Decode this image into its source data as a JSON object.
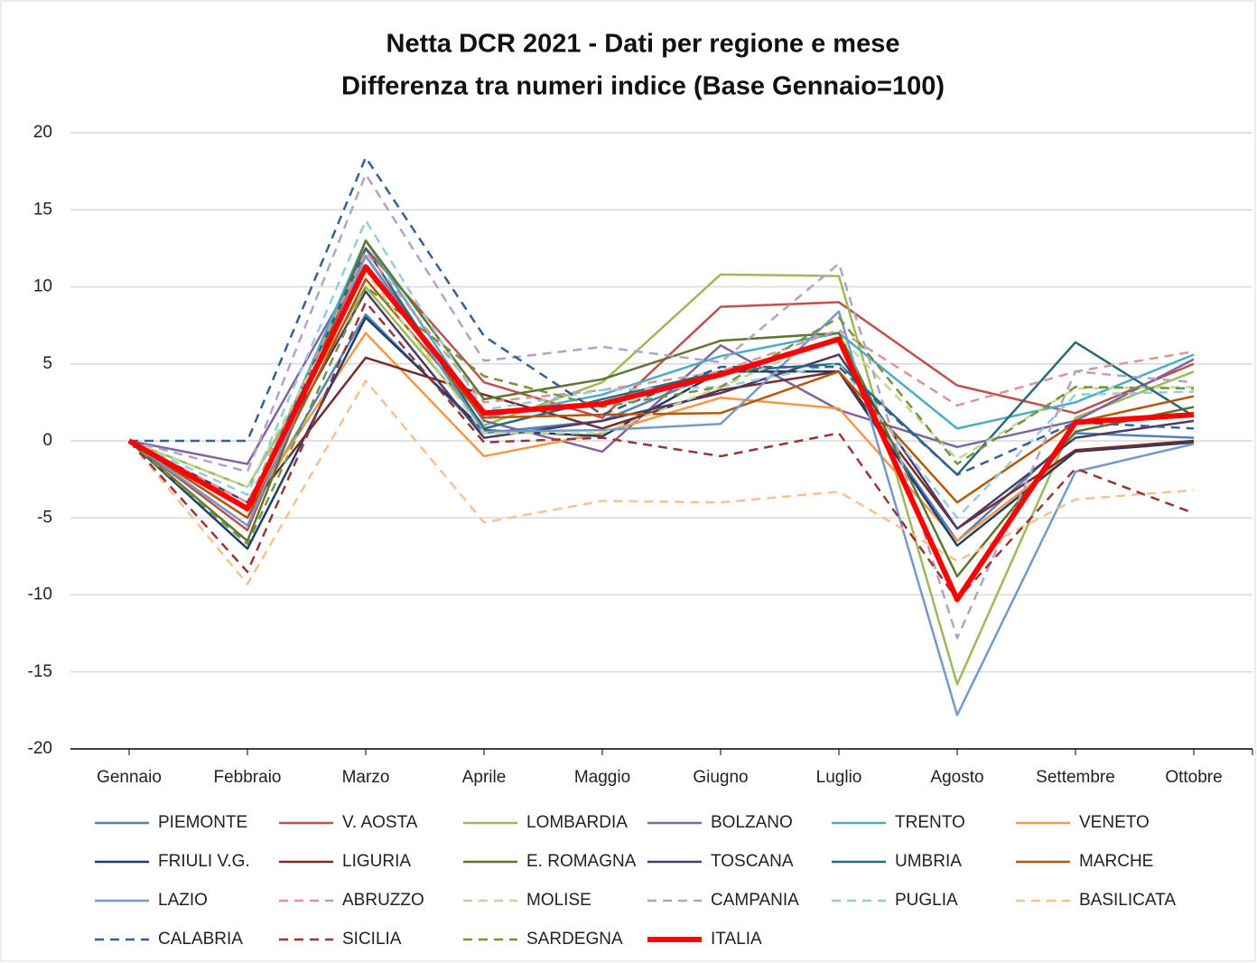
{
  "chart_data": {
    "type": "line",
    "title": "Netta DCR 2021 - Dati per regione e mese",
    "subtitle": "Differenza tra numeri indice (Base Gennaio=100)",
    "categories": [
      "Gennaio",
      "Febbraio",
      "Marzo",
      "Aprile",
      "Maggio",
      "Giugno",
      "Luglio",
      "Agosto",
      "Settembre",
      "Ottobre"
    ],
    "ylim": [
      -20,
      20
    ],
    "yticks": [
      -20,
      -15,
      -10,
      -5,
      0,
      5,
      10,
      15,
      20
    ],
    "grid": true,
    "legend": "bottom",
    "series": [
      {
        "name": "PIEMONTE",
        "color": "#4f81bd",
        "values": [
          0,
          -5,
          8.2,
          0.5,
          1.3,
          4.5,
          4.5,
          -6.5,
          0.5,
          0.2
        ]
      },
      {
        "name": "V. AOSTA",
        "color": "#c0504d",
        "values": [
          0,
          -5.8,
          12.5,
          3.8,
          1.5,
          8.7,
          9,
          3.6,
          1.8,
          5
        ]
      },
      {
        "name": "LOMBARDIA",
        "color": "#9bbb59",
        "values": [
          0,
          -3,
          10,
          1,
          3.8,
          10.8,
          10.7,
          -15.8,
          1.5,
          4.5
        ]
      },
      {
        "name": "BOLZANO",
        "color": "#8064a2",
        "values": [
          0,
          -1.5,
          12,
          1.3,
          -0.7,
          6.2,
          2,
          -0.4,
          1.3,
          5.3
        ]
      },
      {
        "name": "TRENTO",
        "color": "#4bacc6",
        "values": [
          0,
          -4.5,
          13,
          1.5,
          3,
          5.5,
          7,
          0.8,
          2.5,
          5.6
        ]
      },
      {
        "name": "VENETO",
        "color": "#f79646",
        "values": [
          0,
          -4.5,
          7,
          -1,
          0.5,
          2.8,
          2.1,
          -6.5,
          -0.6,
          0
        ]
      },
      {
        "name": "FRIULI V.G.",
        "color": "#1f3d6b",
        "values": [
          0,
          -7,
          8,
          0.7,
          0.3,
          4.5,
          4.5,
          -6.8,
          -0.7,
          -0.1
        ]
      },
      {
        "name": "LIGURIA",
        "color": "#772c2a",
        "values": [
          0,
          -4.5,
          5.4,
          3,
          0.8,
          3.3,
          4.5,
          -5.7,
          -0.6,
          0
        ]
      },
      {
        "name": "E. ROMAGNA",
        "color": "#5f7530",
        "values": [
          0,
          -6.5,
          13,
          2.7,
          4,
          6.5,
          7,
          -8.8,
          0.6,
          2.2
        ]
      },
      {
        "name": "TOSCANA",
        "color": "#4d3b62",
        "values": [
          0,
          -4,
          9.7,
          0.2,
          1.3,
          3.1,
          5.6,
          -5.7,
          0.2,
          1.3
        ]
      },
      {
        "name": "UMBRIA",
        "color": "#276a7c",
        "values": [
          0,
          -4.5,
          12.5,
          0.8,
          2.7,
          4.5,
          5,
          -2.2,
          6.4,
          1.6
        ]
      },
      {
        "name": "MARCHE",
        "color": "#b65708",
        "values": [
          0,
          -5,
          10.5,
          1.5,
          1.7,
          1.8,
          4.5,
          -4,
          1.2,
          2.9
        ]
      },
      {
        "name": "LAZIO",
        "color": "#729aca",
        "values": [
          0,
          -5.5,
          12,
          0.6,
          0.7,
          1.1,
          8.4,
          -17.8,
          -2,
          -0.2
        ]
      },
      {
        "name": "ABRUZZO",
        "color": "#d99694",
        "dashed": true,
        "values": [
          0,
          -4,
          12.3,
          2.5,
          3.3,
          4.5,
          7.2,
          2.3,
          4.5,
          5.8
        ]
      },
      {
        "name": "MOLISE",
        "color": "#c3d69b",
        "dashed": true,
        "values": [
          0,
          -3,
          11,
          0.5,
          0.5,
          3.5,
          6.8,
          -1.2,
          3.4,
          3.5
        ]
      },
      {
        "name": "CAMPANIA",
        "color": "#b3a2c7",
        "dashed": true,
        "values": [
          0,
          -2,
          17.3,
          5.2,
          6.1,
          5.1,
          11.5,
          -12.8,
          4.5,
          3.8
        ]
      },
      {
        "name": "PUGLIA",
        "color": "#93cddd",
        "dashed": true,
        "values": [
          0,
          -3.5,
          14.3,
          2,
          3.3,
          3.5,
          5,
          -5,
          3,
          3.2
        ]
      },
      {
        "name": "BASILICATA",
        "color": "#fac090",
        "dashed": true,
        "values": [
          0,
          -9.3,
          3.9,
          -5.3,
          -3.9,
          -4,
          -3.3,
          -7.8,
          -3.8,
          -3.2
        ]
      },
      {
        "name": "CALABRIA",
        "color": "#376092",
        "dashed": true,
        "values": [
          0,
          0,
          18.4,
          6.8,
          1.7,
          4.8,
          4.8,
          -2.2,
          1.2,
          0.8
        ]
      },
      {
        "name": "SICILIA",
        "color": "#953735",
        "dashed": true,
        "values": [
          0,
          -8.5,
          9,
          -0.1,
          0.2,
          -1,
          0.5,
          -10.3,
          -1.8,
          -4.7
        ]
      },
      {
        "name": "SARDEGNA",
        "color": "#77933c",
        "dashed": true,
        "values": [
          0,
          -6.7,
          10,
          4.2,
          2.2,
          3.5,
          8,
          -1.5,
          3.5,
          3.4
        ]
      },
      {
        "name": "ITALIA",
        "color": "#ff0000",
        "highlight": true,
        "values": [
          0,
          -4.4,
          11.3,
          1.8,
          2.4,
          4.3,
          6.6,
          -10.3,
          1.2,
          1.7
        ]
      }
    ]
  }
}
